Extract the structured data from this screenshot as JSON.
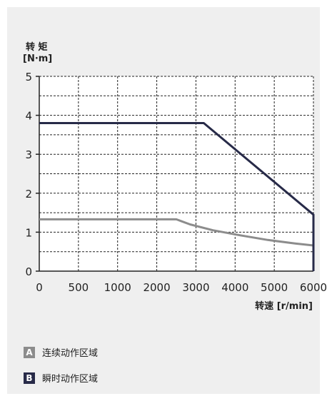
{
  "chart_data": {
    "type": "line",
    "ylabel_line1": "转 矩",
    "ylabel_line2": "[N·m]",
    "xlabel": "转速 [r/min]",
    "xlim": [
      0,
      6000
    ],
    "ylim": [
      0,
      5
    ],
    "x_ticks": [
      0,
      500,
      1000,
      2000,
      3000,
      4000,
      5000,
      6000
    ],
    "y_ticks": [
      0,
      1,
      2,
      3,
      4,
      5
    ],
    "grid": true,
    "series": [
      {
        "name": "连续动作区域",
        "letter": "A",
        "color": "#8c8c8c",
        "points": [
          [
            0,
            1.33
          ],
          [
            3000,
            1.33
          ],
          [
            3300,
            1.2
          ],
          [
            3800,
            1.05
          ],
          [
            4400,
            0.92
          ],
          [
            5000,
            0.8
          ],
          [
            5600,
            0.71
          ],
          [
            6000,
            0.66
          ]
        ]
      },
      {
        "name": "瞬时动作区域",
        "letter": "B",
        "color": "#272a48",
        "points": [
          [
            0,
            3.8
          ],
          [
            3600,
            3.8
          ],
          [
            6000,
            1.45
          ],
          [
            6000,
            0
          ]
        ]
      }
    ]
  }
}
